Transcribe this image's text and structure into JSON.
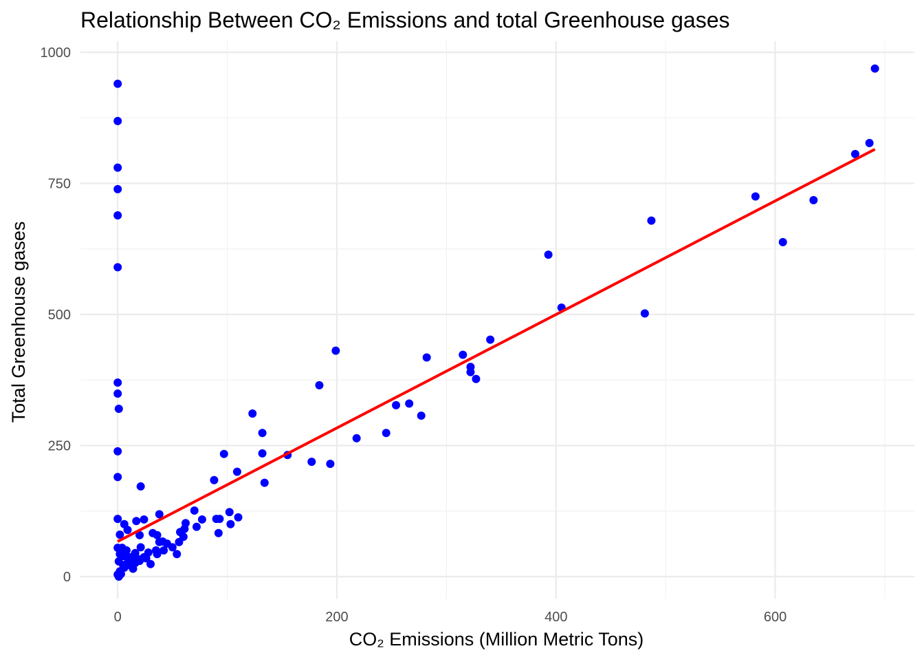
{
  "chart_data": {
    "type": "scatter",
    "title": "Relationship Between CO₂ Emissions and total Greenhouse gases",
    "xlabel": "CO₂ Emissions (Million Metric Tons)",
    "ylabel": "Total Greenhouse gases",
    "xlim": [
      -34,
      727
    ],
    "ylim": [
      -42,
      1021
    ],
    "xticks": [
      0,
      200,
      400,
      600
    ],
    "xtick_labels": [
      "0",
      "200",
      "400",
      "600"
    ],
    "yticks": [
      0,
      250,
      500,
      750,
      1000
    ],
    "ytick_labels": [
      "0",
      "250",
      "500",
      "750",
      "1000"
    ],
    "grid": true,
    "point_color": "#0000FF",
    "line_color": "#FF0000",
    "trend_line": {
      "x": [
        0,
        691
      ],
      "y": [
        67,
        815
      ]
    },
    "points": [
      [
        0,
        940
      ],
      [
        0,
        869
      ],
      [
        0,
        780
      ],
      [
        0,
        739
      ],
      [
        0,
        689
      ],
      [
        0,
        590
      ],
      [
        0,
        370
      ],
      [
        0,
        349
      ],
      [
        1,
        320
      ],
      [
        0,
        239
      ],
      [
        0,
        190
      ],
      [
        0,
        110
      ],
      [
        21,
        172
      ],
      [
        184,
        365
      ],
      [
        199,
        431
      ],
      [
        123,
        311
      ],
      [
        132,
        274
      ],
      [
        97,
        234
      ],
      [
        132,
        235
      ],
      [
        155,
        232
      ],
      [
        177,
        219
      ],
      [
        194,
        215
      ],
      [
        109,
        200
      ],
      [
        88,
        184
      ],
      [
        134,
        179
      ],
      [
        218,
        264
      ],
      [
        245,
        274
      ],
      [
        254,
        327
      ],
      [
        266,
        330
      ],
      [
        277,
        307
      ],
      [
        282,
        418
      ],
      [
        315,
        423
      ],
      [
        322,
        400
      ],
      [
        322,
        390
      ],
      [
        327,
        377
      ],
      [
        340,
        452
      ],
      [
        393,
        614
      ],
      [
        405,
        513
      ],
      [
        481,
        502
      ],
      [
        487,
        679
      ],
      [
        582,
        725
      ],
      [
        607,
        638
      ],
      [
        635,
        718
      ],
      [
        673,
        806
      ],
      [
        686,
        827
      ],
      [
        691,
        969
      ],
      [
        70,
        126
      ],
      [
        72,
        95
      ],
      [
        77,
        109
      ],
      [
        90,
        110
      ],
      [
        93,
        110
      ],
      [
        92,
        83
      ],
      [
        102,
        123
      ],
      [
        103,
        100
      ],
      [
        110,
        113
      ],
      [
        62,
        102
      ],
      [
        61,
        91
      ],
      [
        57,
        85
      ],
      [
        60,
        76
      ],
      [
        54,
        43
      ],
      [
        56,
        66
      ],
      [
        50,
        56
      ],
      [
        45,
        63
      ],
      [
        41,
        67
      ],
      [
        38,
        66
      ],
      [
        38,
        119
      ],
      [
        36,
        79
      ],
      [
        32,
        83
      ],
      [
        35,
        50
      ],
      [
        42,
        50
      ],
      [
        36,
        43
      ],
      [
        28,
        46
      ],
      [
        30,
        24
      ],
      [
        24,
        37
      ],
      [
        21,
        56
      ],
      [
        20,
        79
      ],
      [
        17,
        106
      ],
      [
        24,
        109
      ],
      [
        9,
        89
      ],
      [
        6,
        100
      ],
      [
        2,
        80
      ],
      [
        16,
        45
      ],
      [
        12,
        37
      ],
      [
        9,
        26
      ],
      [
        6,
        17
      ],
      [
        2,
        10
      ],
      [
        0,
        4
      ],
      [
        1,
        0
      ],
      [
        0,
        55
      ],
      [
        4,
        55
      ],
      [
        8,
        50
      ],
      [
        2,
        43
      ],
      [
        6,
        39
      ],
      [
        1,
        29
      ],
      [
        12,
        21
      ],
      [
        16,
        26
      ],
      [
        18,
        34
      ],
      [
        3,
        5
      ],
      [
        10,
        30
      ],
      [
        14,
        15
      ],
      [
        5,
        22
      ],
      [
        20,
        30
      ],
      [
        26,
        35
      ]
    ]
  }
}
